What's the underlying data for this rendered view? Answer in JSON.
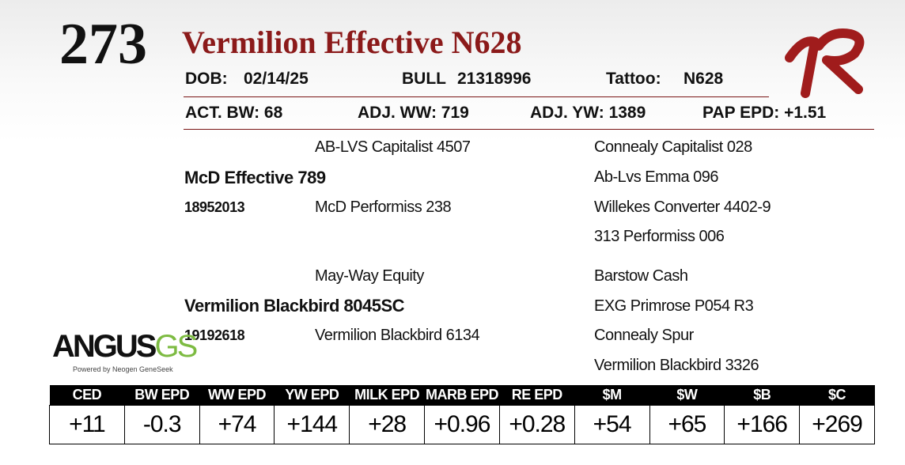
{
  "header": {
    "lot": "273",
    "title": "Vermilion Effective N628",
    "dob_label": "DOB:",
    "dob": "02/14/25",
    "sex": "BULL",
    "registration": "21318996",
    "tattoo_label": "Tattoo:",
    "tattoo": "N628"
  },
  "stats": [
    "ACT. BW: 68",
    "ADJ. WW: 719",
    "ADJ. YW: 1389",
    "PAP EPD: +1.51"
  ],
  "pedigree": {
    "sire": {
      "name": "McD Effective 789",
      "registration": "18952013",
      "sire": "AB-LVS Capitalist 4507",
      "dam": "McD Performiss 238",
      "grandparents": [
        "Connealy Capitalist 028",
        "Ab-Lvs Emma 096",
        "Willekes Converter 4402-9",
        "313 Performiss 006"
      ]
    },
    "dam": {
      "name": "Vermilion Blackbird 8045SC",
      "registration": "19192618",
      "sire": "May-Way Equity",
      "dam": "Vermilion Blackbird 6134",
      "grandparents": [
        "Barstow Cash",
        "EXG Primrose P054 R3",
        "Connealy Spur",
        "Vermilion Blackbird 3326"
      ]
    }
  },
  "logo": {
    "angus": "ANGUS",
    "gs": "GS",
    "tagline": "Powered by Neogen GeneSeek"
  },
  "table": {
    "headers": [
      "CED",
      "BW EPD",
      "WW EPD",
      "YW EPD",
      "MILK EPD",
      "MARB EPD",
      "RE EPD",
      "$M",
      "$W",
      "$B",
      "$C"
    ],
    "values": [
      "+11",
      "-0.3",
      "+74",
      "+144",
      "+28",
      "+0.96",
      "+0.28",
      "+54",
      "+65",
      "+166",
      "+269"
    ]
  }
}
